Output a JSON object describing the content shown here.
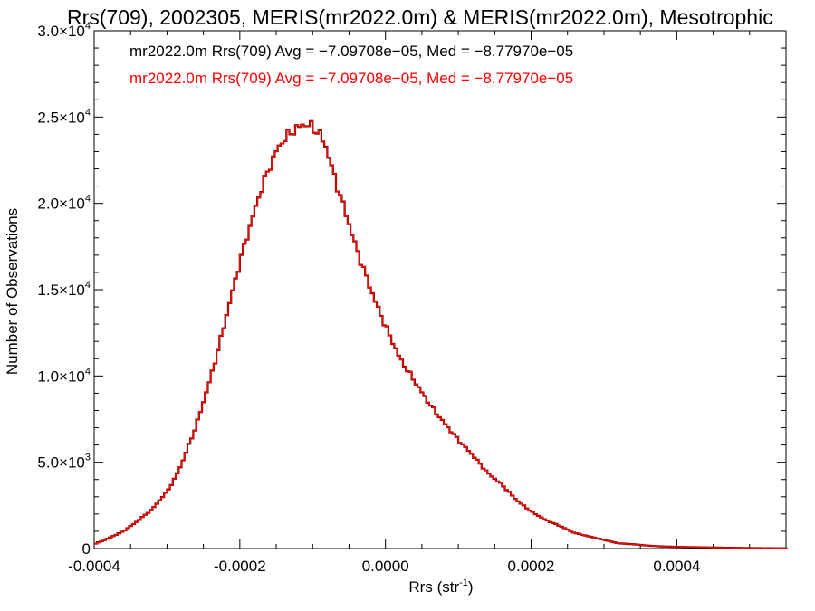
{
  "chart_data": {
    "type": "line",
    "title": "Rrs(709), 2002305, MERIS(mr2022.0m) & MERIS(mr2022.0m), Mesotrophic",
    "xlabel_main": "Rrs (str",
    "xlabel_sup": "-1",
    "xlabel_close": ")",
    "ylabel": "Number of Observations",
    "xlim": [
      -0.0004,
      0.00055
    ],
    "ylim": [
      0,
      30000
    ],
    "x_ticks": [
      {
        "value": -0.0004,
        "label": "-0.0004"
      },
      {
        "value": -0.0002,
        "label": "-0.0002"
      },
      {
        "value": 0.0,
        "label": "0.0000"
      },
      {
        "value": 0.0002,
        "label": "0.0002"
      },
      {
        "value": 0.0004,
        "label": "0.0004"
      }
    ],
    "y_ticks": [
      {
        "value": 0,
        "mant": "0",
        "exp": ""
      },
      {
        "value": 5000,
        "mant": "5.0×10",
        "exp": "3"
      },
      {
        "value": 10000,
        "mant": "1.0×10",
        "exp": "4"
      },
      {
        "value": 15000,
        "mant": "1.5×10",
        "exp": "4"
      },
      {
        "value": 20000,
        "mant": "2.0×10",
        "exp": "4"
      },
      {
        "value": 25000,
        "mant": "2.5×10",
        "exp": "4"
      },
      {
        "value": 30000,
        "mant": "3.0×10",
        "exp": "4"
      }
    ],
    "legend_position": "top-left",
    "legend": [
      {
        "text": "mr2022.0m Rrs(709) Avg = −7.09708e−05, Med = −8.77970e−05",
        "color": "#000000"
      },
      {
        "text": "mr2022.0m Rrs(709) Avg = −7.09708e−05, Med = −8.77970e−05",
        "color": "#ff0000"
      }
    ],
    "series": [
      {
        "color_primary": "#000000",
        "color_overlay": "#ff0000",
        "x": [
          -0.0004,
          -0.00038,
          -0.00036,
          -0.00034,
          -0.00032,
          -0.0003,
          -0.00029,
          -0.00028,
          -0.00027,
          -0.00026,
          -0.00025,
          -0.00024,
          -0.00023,
          -0.00022,
          -0.00021,
          -0.0002,
          -0.00019,
          -0.00018,
          -0.00017,
          -0.00016,
          -0.00015,
          -0.00014,
          -0.00013,
          -0.00012,
          -0.00011,
          -0.0001,
          -9e-05,
          -8e-05,
          -7e-05,
          -6e-05,
          -5e-05,
          -4e-05,
          -3e-05,
          -2e-05,
          -1e-05,
          0.0,
          2e-05,
          4e-05,
          6e-05,
          8e-05,
          0.0001,
          0.00012,
          0.00014,
          0.00016,
          0.00018,
          0.0002,
          0.00022,
          0.00024,
          0.00026,
          0.00028,
          0.0003,
          0.00032,
          0.00034,
          0.00036,
          0.00038,
          0.0004,
          0.00045,
          0.0005,
          0.00055
        ],
        "y": [
          250,
          600,
          1000,
          1600,
          2300,
          3300,
          4000,
          4900,
          6000,
          7100,
          8500,
          9900,
          11500,
          13200,
          14900,
          16600,
          18100,
          19500,
          20900,
          22000,
          23000,
          23700,
          24100,
          24400,
          24600,
          24400,
          24000,
          23100,
          21500,
          20200,
          18800,
          17400,
          16200,
          15000,
          13900,
          12900,
          11000,
          9700,
          8400,
          7300,
          6300,
          5400,
          4400,
          3700,
          2800,
          2150,
          1650,
          1300,
          900,
          700,
          500,
          300,
          250,
          170,
          120,
          100,
          60,
          30,
          10
        ]
      }
    ]
  }
}
